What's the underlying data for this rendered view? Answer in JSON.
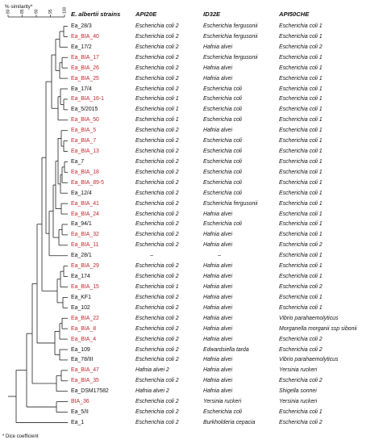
{
  "scale": {
    "label": "% similarity*",
    "ticks": [
      "80",
      "85",
      "90",
      "95",
      "100"
    ]
  },
  "headers": {
    "strains": "E. albertii strains",
    "api20e": "API20E",
    "id32e": "ID32E",
    "api50che": "API50CHE"
  },
  "rows": [
    {
      "strain": "Ea_28/3",
      "red": false,
      "api20e": "Escherichia coli 2",
      "id32e": "Escherichia fergusonii",
      "api50": "Escherichia coli 1"
    },
    {
      "strain": "Ea_BIA_40",
      "red": true,
      "api20e": "Escherichia coli 2",
      "id32e": "Escherichia fergusonii",
      "api50": "Escherichia coli 1"
    },
    {
      "strain": "Ea_17/2",
      "red": false,
      "api20e": "Escherichia coli 2",
      "id32e": "Hafnia alvei",
      "api50": "Escherichia coli 2"
    },
    {
      "strain": "Ea_BIA_17",
      "red": true,
      "api20e": "Escherichia coli 2",
      "id32e": "Escherichia fergusonii",
      "api50": "Escherichia coli 1"
    },
    {
      "strain": "Ea_BIA_26",
      "red": true,
      "api20e": "Escherichia coli 2",
      "id32e": "Hafnia alvei",
      "api50": "Escherichia coli 1"
    },
    {
      "strain": "Ea_BIA_25",
      "red": true,
      "api20e": "Escherichia coli 2",
      "id32e": "Hafnia alvei",
      "api50": "Escherichia coli 1"
    },
    {
      "strain": "Ea_17/4",
      "red": false,
      "api20e": "Escherichia coli 2",
      "id32e": "Escherichia coli",
      "api50": "Escherichia coli 1"
    },
    {
      "strain": "Ea_BIA_16-1",
      "red": true,
      "api20e": "Escherichia coli 1",
      "id32e": "Escherichia coli",
      "api50": "Escherichia coli 1"
    },
    {
      "strain": "Ea_5/2015",
      "red": false,
      "api20e": "Escherichia coli 1",
      "id32e": "Escherichia coli",
      "api50": "Escherichia coli 1"
    },
    {
      "strain": "Ea_BIA_50",
      "red": true,
      "api20e": "Escherichia coli 1",
      "id32e": "Escherichia coli",
      "api50": "Escherichia coli 1"
    },
    {
      "strain": "Ea_BIA_5",
      "red": true,
      "api20e": "Escherichia coli 2",
      "id32e": "Hafnia alvei",
      "api50": "Escherichia coli 1"
    },
    {
      "strain": "Ea_BIA_7",
      "red": true,
      "api20e": "Escherichia coli 2",
      "id32e": "Escherichia coli",
      "api50": "Escherichia coli 1"
    },
    {
      "strain": "Ea_BIA_13",
      "red": true,
      "api20e": "Escherichia coli 2",
      "id32e": "Escherichia coli",
      "api50": "Escherichia coli 1"
    },
    {
      "strain": "Ea_7",
      "red": false,
      "api20e": "Escherichia coli 2",
      "id32e": "Escherichia coli",
      "api50": "Escherichia coli 1"
    },
    {
      "strain": "Ea_BIA_18",
      "red": true,
      "api20e": "Escherichia coli 2",
      "id32e": "Escherichia coli",
      "api50": "Escherichia coli 1"
    },
    {
      "strain": "Ea_BIA_89-5",
      "red": true,
      "api20e": "Escherichia coli 2",
      "id32e": "Escherichia coli",
      "api50": "Escherichia coli 1"
    },
    {
      "strain": "Ea_12/4",
      "red": false,
      "api20e": "Escherichia coli 2",
      "id32e": "Escherichia coli",
      "api50": "Escherichia coli 1"
    },
    {
      "strain": "Ea_BIA_41",
      "red": true,
      "api20e": "Escherichia coli 2",
      "id32e": "Escherichia fergusonii",
      "api50": "Escherichia coli 1"
    },
    {
      "strain": "Ea_BIA_24",
      "red": true,
      "api20e": "Escherichia coli 2",
      "id32e": "Hafnia alvei",
      "api50": "Escherichia coli 1"
    },
    {
      "strain": "Ea_94/1",
      "red": false,
      "api20e": "Escherichia coli 2",
      "id32e": "Escherichia coli",
      "api50": "Escherichia coli 1"
    },
    {
      "strain": "Ea_BIA_32",
      "red": true,
      "api20e": "Escherichia coli 2",
      "id32e": "Hafnia alvei",
      "api50": "Escherichia coli 1"
    },
    {
      "strain": "Ea_BIA_11",
      "red": true,
      "api20e": "Escherichia coli 2",
      "id32e": "Hafnia alvei",
      "api50": "Escherichia coli 2"
    },
    {
      "strain": "Ea_28/1",
      "red": false,
      "api20e": "–",
      "id32e": "–",
      "api50": "Escherichia coli 1"
    },
    {
      "strain": "Ea_BIA_29",
      "red": true,
      "api20e": "Escherichia coli 2",
      "id32e": "Hafnia alvei",
      "api50": "Escherichia coli 1"
    },
    {
      "strain": "Ea_174",
      "red": false,
      "api20e": "Escherichia coli 2",
      "id32e": "Hafnia alvei",
      "api50": "Escherichia coli 1"
    },
    {
      "strain": "Ea_BIA_15",
      "red": true,
      "api20e": "Escherichia coli 1",
      "id32e": "Hafnia alvei",
      "api50": "Escherichia coli 2"
    },
    {
      "strain": "Ea_KF1",
      "red": false,
      "api20e": "Escherichia coli 2",
      "id32e": "Hafnia alvei",
      "api50": "Escherichia coli 1"
    },
    {
      "strain": "Ea_102",
      "red": false,
      "api20e": "Escherichia coli 2",
      "id32e": "Hafnia alvei",
      "api50": "Escherichia coli 1"
    },
    {
      "strain": "Ea_BIA_22",
      "red": true,
      "api20e": "Escherichia coli 2",
      "id32e": "Hafnia alvei",
      "api50": "Vibrio parahaemolyticus"
    },
    {
      "strain": "Ea_BIA_8",
      "red": true,
      "api20e": "Escherichia coli 2",
      "id32e": "Hafnia alvei",
      "api50": "Morganella morganii ssp sibonii"
    },
    {
      "strain": "Ea_BIA_4",
      "red": true,
      "api20e": "Escherichia coli 2",
      "id32e": "Hafnia alvei",
      "api50": "Escherichia coli 2"
    },
    {
      "strain": "Ea_109",
      "red": false,
      "api20e": "Escherichia coli 2",
      "id32e": "Edwardsiella tarda",
      "api50": "Escherichia coli 2"
    },
    {
      "strain": "Ea_78/III",
      "red": false,
      "api20e": "Escherichia coli 2",
      "id32e": "Hafnia alvei",
      "api50": "Vibrio parahaemolyticus"
    },
    {
      "strain": "Ea_BIA_47",
      "red": true,
      "api20e": "Hafnia alvei 2",
      "id32e": "Hafnia alvei",
      "api50": "Yersinia ruckeri"
    },
    {
      "strain": "Ea_BIA_35",
      "red": true,
      "api20e": "Escherichia coli 2",
      "id32e": "Hafnia alvei",
      "api50": "Escherichia coli 2"
    },
    {
      "strain": "Ea_DSM17582",
      "red": false,
      "api20e": "Hafnia alvei 2",
      "id32e": "Hafnia alvei",
      "api50": "Shigella sonnei"
    },
    {
      "strain": "BIA_36",
      "red": true,
      "api20e": "Escherichia coli 2",
      "id32e": "Yersinia ruckeri",
      "api50": "Yersinia ruckeri"
    },
    {
      "strain": "Ea_5/II",
      "red": false,
      "api20e": "Escherichia coli 2",
      "id32e": "Escherichia coli",
      "api50": "Escherichia coli 1"
    },
    {
      "strain": "Ea_1",
      "red": false,
      "api20e": "Escherichia coli 2",
      "id32e": "Burkholderia cepacia",
      "api50": "Escherichia coli 2"
    }
  ],
  "footnote": "* Dice coefficient",
  "colors": {
    "red_strain": "#c0282c",
    "text": "#111111"
  }
}
